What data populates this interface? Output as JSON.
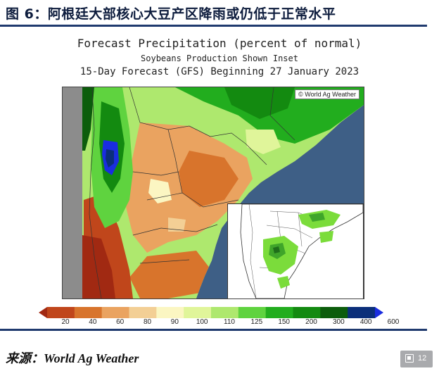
{
  "figure": {
    "title": "图 6：阿根廷大部核心大豆产区降雨或仍低于正常水平",
    "source": "来源：World Ag Weather",
    "page_number": "12"
  },
  "map": {
    "title": "Forecast Precipitation (percent of normal)",
    "subtitle": "Soybeans Production Shown Inset",
    "subtitle2": "15-Day Forecast (GFS) Beginning 27 January 2023",
    "credit": "© World Ag Weather",
    "ocean_color": "#3e5f86",
    "land_outside_color": "#8c8c8c"
  },
  "legend": {
    "units": "percent of normal",
    "ticks": [
      "20",
      "40",
      "60",
      "80",
      "90",
      "100",
      "110",
      "125",
      "150",
      "200",
      "300",
      "400",
      "600"
    ],
    "colors": [
      "#a12912",
      "#c0461b",
      "#d8742c",
      "#eaa360",
      "#f3cf95",
      "#fbf6c2",
      "#e0f59a",
      "#aee86e",
      "#5fd33f",
      "#22ad1e",
      "#138a10",
      "#0c5d0c",
      "#0b2f7a",
      "#1a2de0"
    ]
  }
}
